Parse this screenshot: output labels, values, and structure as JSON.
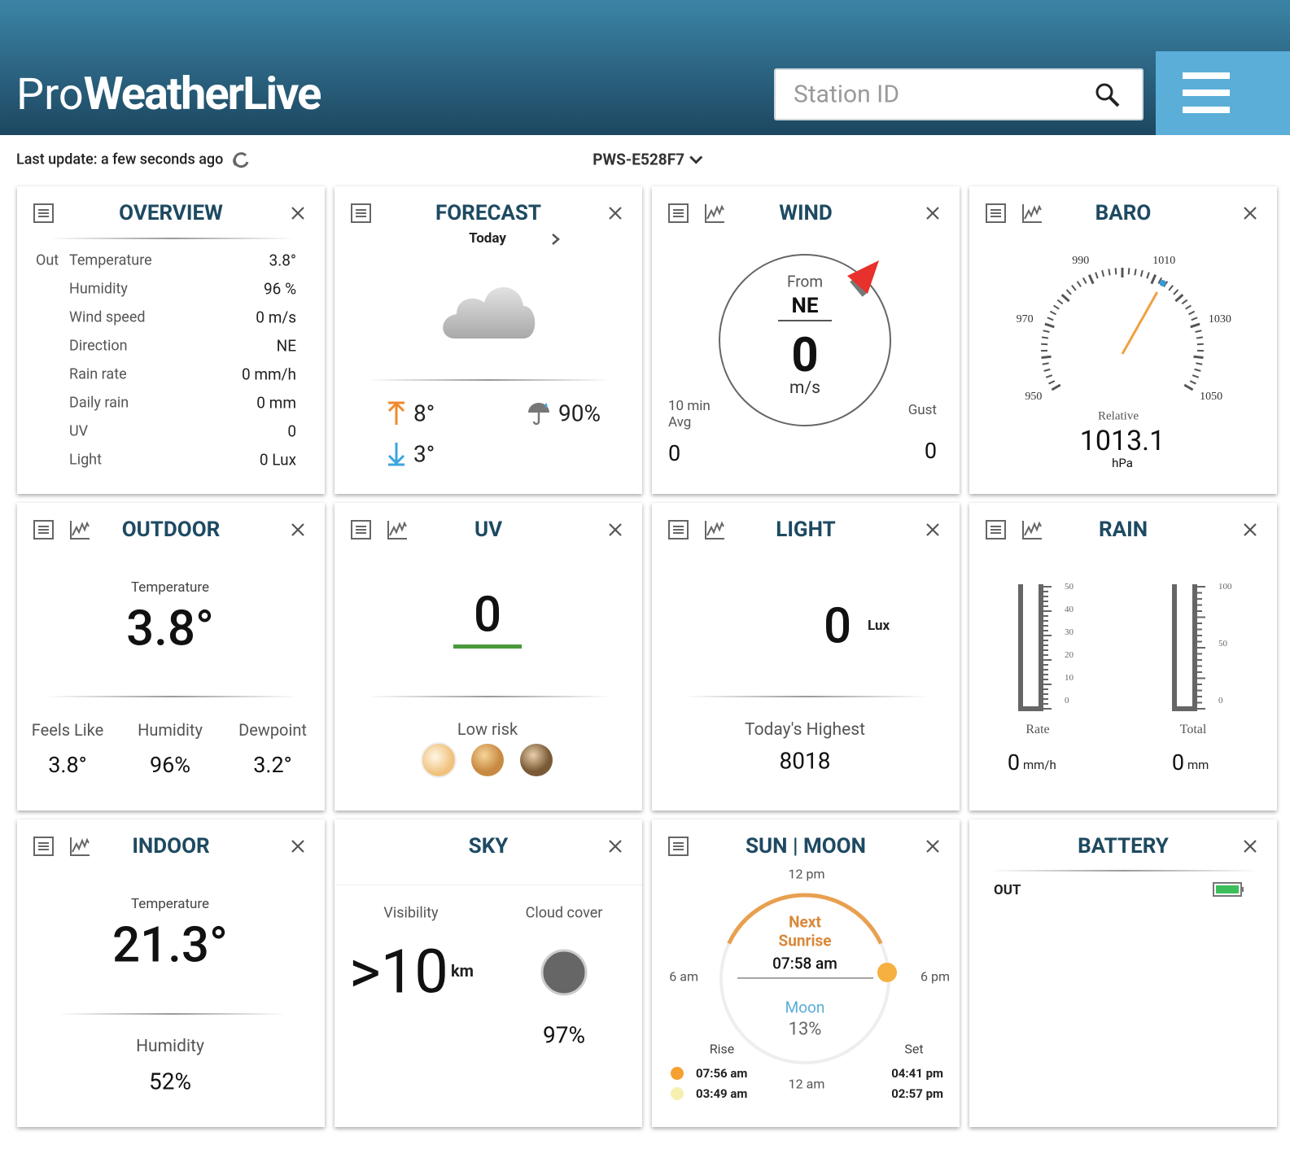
{
  "header": {
    "logo_prefix": "Pro",
    "logo_name": "WeatherLive",
    "search_placeholder": "Station ID"
  },
  "status": {
    "last_update": "Last update: a few seconds ago",
    "station": "PWS-E528F7"
  },
  "overview": {
    "title": "OVERVIEW",
    "group": "Out",
    "rows": [
      [
        "Temperature",
        "3.8°"
      ],
      [
        "Humidity",
        "96 %"
      ],
      [
        "Wind speed",
        "0 m/s"
      ],
      [
        "Direction",
        "NE"
      ],
      [
        "Rain rate",
        "0 mm/h"
      ],
      [
        "Daily rain",
        "0 mm"
      ],
      [
        "UV",
        "0"
      ],
      [
        "Light",
        "0 Lux"
      ]
    ]
  },
  "forecast": {
    "title": "FORECAST",
    "day": "Today",
    "high": "8°",
    "low": "3°",
    "rain_chance": "90%"
  },
  "wind": {
    "title": "WIND",
    "from_label": "From",
    "direction": "NE",
    "speed": "0",
    "unit": "m/s",
    "avg_label": "10 min Avg",
    "avg": "0",
    "gust_label": "Gust",
    "gust": "0"
  },
  "baro": {
    "title": "BARO",
    "scale": [
      "950",
      "970",
      "990",
      "1010",
      "1030",
      "1050"
    ],
    "label": "Relative",
    "value": "1013.1",
    "unit": "hPa"
  },
  "outdoor": {
    "title": "OUTDOOR",
    "temp_label": "Temperature",
    "temp": "3.8°",
    "stats": [
      [
        "Feels Like",
        "3.8°"
      ],
      [
        "Humidity",
        "96%"
      ],
      [
        "Dewpoint",
        "3.2°"
      ]
    ]
  },
  "uv": {
    "title": "UV",
    "value": "0",
    "risk": "Low risk"
  },
  "light": {
    "title": "LIGHT",
    "value": "0",
    "unit": "Lux",
    "highest_label": "Today's Highest",
    "highest": "8018"
  },
  "rain": {
    "title": "RAIN",
    "rate_scale": [
      "50",
      "40",
      "30",
      "20",
      "10",
      "0"
    ],
    "total_scale": [
      "100",
      "50",
      "0"
    ],
    "rate_label": "Rate",
    "rate": "0",
    "rate_unit": "mm/h",
    "total_label": "Total",
    "total": "0",
    "total_unit": "mm"
  },
  "indoor": {
    "title": "INDOOR",
    "temp_label": "Temperature",
    "temp": "21.3°",
    "humidity_label": "Humidity",
    "humidity": "52%"
  },
  "sky": {
    "title": "SKY",
    "visibility_label": "Visibility",
    "visibility": ">10",
    "visibility_unit": "km",
    "cloud_label": "Cloud cover",
    "cloud": "97%"
  },
  "sun_moon": {
    "title": "SUN | MOON",
    "clock": [
      "12 pm",
      "6 pm",
      "12 am",
      "6 am"
    ],
    "next": "Next",
    "event": "Sunrise",
    "event_time": "07:58 am",
    "moon_label": "Moon",
    "moon": "13%",
    "rise_label": "Rise",
    "set_label": "Set",
    "sun_rise": "07:56 am",
    "sun_set": "04:41 pm",
    "moon_rise": "03:49 am",
    "moon_set": "02:57 pm"
  },
  "battery": {
    "title": "BATTERY",
    "label": "OUT"
  }
}
